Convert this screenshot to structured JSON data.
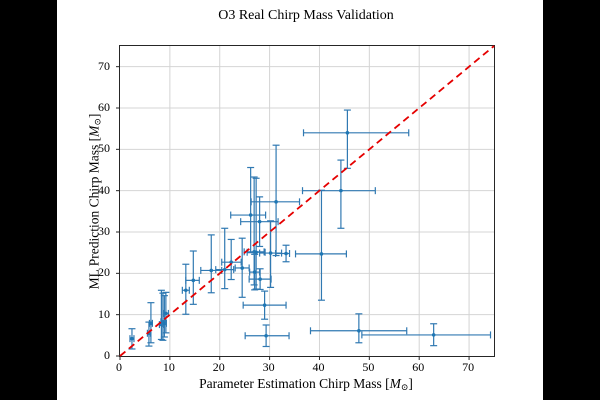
{
  "chart_data": {
    "type": "scatter",
    "title": "O3 Real Chirp Mass Validation",
    "xlabel": "Parameter Estimation Chirp Mass [M⊙]",
    "ylabel": "ML Prediction Chirp Mass [M⊙]",
    "xlim": [
      0,
      75
    ],
    "ylim": [
      0,
      75
    ],
    "xticks": [
      0,
      10,
      20,
      30,
      40,
      50,
      60,
      70
    ],
    "yticks": [
      0,
      10,
      20,
      30,
      40,
      50,
      60,
      70
    ],
    "grid": true,
    "grid_color": "#d4d4d4",
    "series_color": "#1f77b4",
    "errorbar_color": "#3079b2",
    "reference_line": {
      "style": "dashed",
      "from": [
        0,
        0
      ],
      "to": [
        75,
        75
      ],
      "color": "#e50000"
    },
    "points": [
      {
        "x": 2.4,
        "y": 4.2,
        "xe": [
          2.0,
          2.8
        ],
        "ye": [
          1.7,
          6.6
        ]
      },
      {
        "x": 5.8,
        "y": 5.5,
        "xe": [
          5.5,
          6.1
        ],
        "ye": [
          2.4,
          8.2
        ]
      },
      {
        "x": 6.2,
        "y": 7.9,
        "xe": [
          5.9,
          6.5
        ],
        "ye": [
          3.2,
          12.9
        ]
      },
      {
        "x": 8.3,
        "y": 7.6,
        "xe": [
          7.9,
          8.7
        ],
        "ye": [
          4.0,
          15.9
        ]
      },
      {
        "x": 8.6,
        "y": 8.3,
        "xe": [
          8.2,
          9.0
        ],
        "ye": [
          3.8,
          15.2
        ]
      },
      {
        "x": 8.9,
        "y": 7.9,
        "xe": [
          8.5,
          9.3
        ],
        "ye": [
          4.6,
          14.6
        ]
      },
      {
        "x": 9.2,
        "y": 10.3,
        "xe": [
          8.7,
          9.7
        ],
        "ye": [
          5.6,
          15.4
        ]
      },
      {
        "x": 13.2,
        "y": 15.9,
        "xe": [
          12.5,
          13.9
        ],
        "ye": [
          10.1,
          22.2
        ]
      },
      {
        "x": 14.7,
        "y": 18.3,
        "xe": [
          13.2,
          15.9
        ],
        "ye": [
          12.5,
          25.4
        ]
      },
      {
        "x": 18.3,
        "y": 20.7,
        "xe": [
          16.2,
          20.4
        ],
        "ye": [
          15.3,
          29.3
        ]
      },
      {
        "x": 21.0,
        "y": 20.9,
        "xe": [
          19.2,
          22.8
        ],
        "ye": [
          16.3,
          30.9
        ]
      },
      {
        "x": 22.3,
        "y": 22.7,
        "xe": [
          20.4,
          24.3
        ],
        "ye": [
          18.5,
          28.2
        ]
      },
      {
        "x": 24.5,
        "y": 21.3,
        "xe": [
          23.1,
          25.9
        ],
        "ye": [
          14.2,
          28.5
        ]
      },
      {
        "x": 26.2,
        "y": 34.1,
        "xe": [
          22.2,
          29.2
        ],
        "ye": [
          25.0,
          45.6
        ]
      },
      {
        "x": 26.9,
        "y": 25.2,
        "xe": [
          24.9,
          28.9
        ],
        "ye": [
          17.2,
          43.3
        ]
      },
      {
        "x": 27.3,
        "y": 25.1,
        "xe": [
          25.5,
          29.1
        ],
        "ye": [
          16.2,
          43.0
        ]
      },
      {
        "x": 27.0,
        "y": 20.3,
        "xe": [
          26.0,
          28.0
        ],
        "ye": [
          16.0,
          24.6
        ]
      },
      {
        "x": 28.1,
        "y": 18.6,
        "xe": [
          25.9,
          30.3
        ],
        "ye": [
          16.1,
          21.1
        ]
      },
      {
        "x": 29.0,
        "y": 12.3,
        "xe": [
          24.7,
          33.3
        ],
        "ye": [
          8.9,
          15.7
        ]
      },
      {
        "x": 29.3,
        "y": 4.9,
        "xe": [
          25.1,
          33.9
        ],
        "ye": [
          2.3,
          7.5
        ]
      },
      {
        "x": 30.2,
        "y": 24.9,
        "xe": [
          28.0,
          32.4
        ],
        "ye": [
          16.6,
          32.7
        ]
      },
      {
        "x": 28.0,
        "y": 32.5,
        "xe": [
          24.2,
          31.7
        ],
        "ye": [
          26.5,
          38.5
        ]
      },
      {
        "x": 31.3,
        "y": 37.3,
        "xe": [
          26.3,
          36.0
        ],
        "ye": [
          24.3,
          51.0
        ]
      },
      {
        "x": 33.3,
        "y": 24.8,
        "xe": [
          31.2,
          34.0
        ],
        "ye": [
          22.8,
          26.8
        ]
      },
      {
        "x": 40.4,
        "y": 24.7,
        "xe": [
          35.2,
          45.4
        ],
        "ye": [
          13.5,
          40.1
        ]
      },
      {
        "x": 44.3,
        "y": 40.0,
        "xe": [
          36.6,
          51.2
        ],
        "ye": [
          30.9,
          47.4
        ]
      },
      {
        "x": 45.6,
        "y": 54.0,
        "xe": [
          36.8,
          57.9
        ],
        "ye": [
          45.4,
          59.5
        ]
      },
      {
        "x": 47.9,
        "y": 6.1,
        "xe": [
          38.2,
          57.5
        ],
        "ye": [
          3.2,
          10.2
        ]
      },
      {
        "x": 62.9,
        "y": 5.1,
        "xe": [
          48.5,
          74.3
        ],
        "ye": [
          2.5,
          7.8
        ]
      }
    ]
  },
  "labels": {
    "x_prefix": "Parameter Estimation Chirp Mass [",
    "y_prefix": "ML Prediction Chirp Mass [",
    "mass_symbol": "M",
    "sun_symbol": "⊙",
    "bracket_close": "]"
  }
}
